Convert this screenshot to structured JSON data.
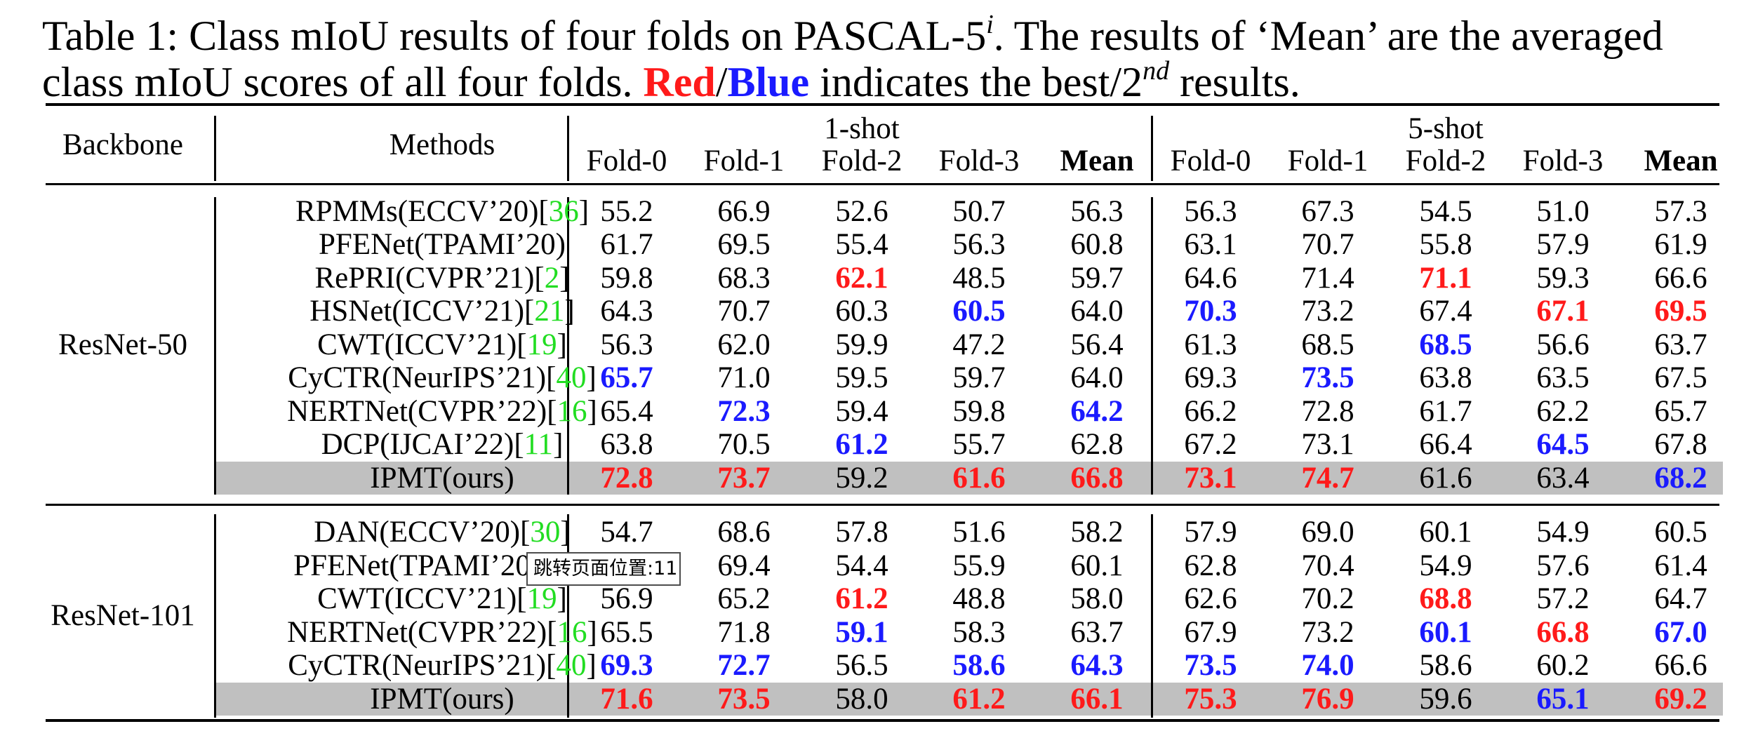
{
  "caption": {
    "line1_a": "Table 1: Class mIoU results of four folds on PASCAL-5",
    "line1_sup": "i",
    "line1_b": ". The results of ‘Mean’ are the averaged",
    "line2_a": "class mIoU scores of all four folds. ",
    "red_word": "Red",
    "slash": "/",
    "blue_word": "Blue",
    "line2_b": " indicates the best/2",
    "line2_sup": "nd",
    "line2_c": " results."
  },
  "header": {
    "backbone": "Backbone",
    "methods": "Methods",
    "shot1": "1-shot",
    "shot5": "5-shot",
    "cols": [
      "Fold-0",
      "Fold-1",
      "Fold-2",
      "Fold-3",
      "Mean",
      "Fold-0",
      "Fold-1",
      "Fold-2",
      "Fold-3",
      "Mean"
    ]
  },
  "groups": [
    {
      "backbone": "ResNet-50",
      "rows": [
        {
          "method": "RPMMs(ECCV’20)[",
          "cite": "36",
          "close": "]",
          "values": [
            "55.2",
            "66.9",
            "52.6",
            "50.7",
            "56.3",
            "56.3",
            "67.3",
            "54.5",
            "51.0",
            "57.3"
          ],
          "styles": [
            "",
            "",
            "",
            "",
            "",
            "",
            "",
            "",
            "",
            ""
          ]
        },
        {
          "method": "PFENet(TPAMI’20)",
          "cite": "",
          "close": "",
          "values": [
            "61.7",
            "69.5",
            "55.4",
            "56.3",
            "60.8",
            "63.1",
            "70.7",
            "55.8",
            "57.9",
            "61.9"
          ],
          "styles": [
            "",
            "",
            "",
            "",
            "",
            "",
            "",
            "",
            "",
            ""
          ]
        },
        {
          "method": "RePRI(CVPR’21)[",
          "cite": "2",
          "close": "]",
          "values": [
            "59.8",
            "68.3",
            "62.1",
            "48.5",
            "59.7",
            "64.6",
            "71.4",
            "71.1",
            "59.3",
            "66.6"
          ],
          "styles": [
            "",
            "",
            "red",
            "",
            "",
            "",
            "",
            "red",
            "",
            ""
          ]
        },
        {
          "method": "HSNet(ICCV’21)[",
          "cite": "21",
          "close": "]",
          "values": [
            "64.3",
            "70.7",
            "60.3",
            "60.5",
            "64.0",
            "70.3",
            "73.2",
            "67.4",
            "67.1",
            "69.5"
          ],
          "styles": [
            "",
            "",
            "",
            "blue",
            "",
            "blue",
            "",
            "",
            "red",
            "red"
          ]
        },
        {
          "method": "CWT(ICCV’21)[",
          "cite": "19",
          "close": "]",
          "values": [
            "56.3",
            "62.0",
            "59.9",
            "47.2",
            "56.4",
            "61.3",
            "68.5",
            "68.5",
            "56.6",
            "63.7"
          ],
          "styles": [
            "",
            "",
            "",
            "",
            "",
            "",
            "",
            "blue",
            "",
            ""
          ]
        },
        {
          "method": "CyCTR(NeurIPS’21)[",
          "cite": "40",
          "close": "]",
          "values": [
            "65.7",
            "71.0",
            "59.5",
            "59.7",
            "64.0",
            "69.3",
            "73.5",
            "63.8",
            "63.5",
            "67.5"
          ],
          "styles": [
            "blue",
            "",
            "",
            "",
            "",
            "",
            "blue",
            "",
            "",
            ""
          ]
        },
        {
          "method": "NERTNet(CVPR’22)[",
          "cite": "16",
          "close": "]",
          "values": [
            "65.4",
            "72.3",
            "59.4",
            "59.8",
            "64.2",
            "66.2",
            "72.8",
            "61.7",
            "62.2",
            "65.7"
          ],
          "styles": [
            "",
            "blue",
            "",
            "",
            "blue",
            "",
            "",
            "",
            "",
            ""
          ]
        },
        {
          "method": "DCP(IJCAI’22)[",
          "cite": "11",
          "close": "]",
          "values": [
            "63.8",
            "70.5",
            "61.2",
            "55.7",
            "62.8",
            "67.2",
            "73.1",
            "66.4",
            "64.5",
            "67.8"
          ],
          "styles": [
            "",
            "",
            "blue",
            "",
            "",
            "",
            "",
            "",
            "blue",
            ""
          ]
        },
        {
          "method": "IPMT(ours)",
          "cite": "",
          "close": "",
          "values": [
            "72.8",
            "73.7",
            "59.2",
            "61.6",
            "66.8",
            "73.1",
            "74.7",
            "61.6",
            "63.4",
            "68.2"
          ],
          "styles": [
            "red",
            "red",
            "",
            "red",
            "red",
            "red",
            "red",
            "",
            "",
            "blue"
          ]
        }
      ]
    },
    {
      "backbone": "ResNet-101",
      "rows": [
        {
          "method": "DAN(ECCV’20)[",
          "cite": "30",
          "close": "]",
          "values": [
            "54.7",
            "68.6",
            "57.8",
            "51.6",
            "58.2",
            "57.9",
            "69.0",
            "60.1",
            "54.9",
            "60.5"
          ],
          "styles": [
            "",
            "",
            "",
            "",
            "",
            "",
            "",
            "",
            "",
            ""
          ]
        },
        {
          "method": "PFENet(TPAMI’20)[",
          "cite": "28",
          "close": "]",
          "values": [
            "60.1",
            "69.4",
            "54.4",
            "55.9",
            "60.1",
            "62.8",
            "70.4",
            "54.9",
            "57.6",
            "61.4"
          ],
          "styles": [
            "",
            "",
            "",
            "",
            "",
            "",
            "",
            "",
            "",
            ""
          ]
        },
        {
          "method": "CWT(ICCV’21)[",
          "cite": "19",
          "close": "]",
          "values": [
            "56.9",
            "65.2",
            "61.2",
            "48.8",
            "58.0",
            "62.6",
            "70.2",
            "68.8",
            "57.2",
            "64.7"
          ],
          "styles": [
            "",
            "",
            "red",
            "",
            "",
            "",
            "",
            "red",
            "",
            ""
          ]
        },
        {
          "method": "NERTNet(CVPR’22)[",
          "cite": "16",
          "close": "]",
          "values": [
            "65.5",
            "71.8",
            "59.1",
            "58.3",
            "63.7",
            "67.9",
            "73.2",
            "60.1",
            "66.8",
            "67.0"
          ],
          "styles": [
            "",
            "",
            "blue",
            "",
            "",
            "",
            "",
            "blue",
            "red",
            "blue"
          ]
        },
        {
          "method": "CyCTR(NeurIPS’21)[",
          "cite": "40",
          "close": "]",
          "values": [
            "69.3",
            "72.7",
            "56.5",
            "58.6",
            "64.3",
            "73.5",
            "74.0",
            "58.6",
            "60.2",
            "66.6"
          ],
          "styles": [
            "blue",
            "blue",
            "",
            "blue",
            "blue",
            "blue",
            "blue",
            "",
            "",
            ""
          ]
        },
        {
          "method": "IPMT(ours)",
          "cite": "",
          "close": "",
          "values": [
            "71.6",
            "73.5",
            "58.0",
            "61.2",
            "66.1",
            "75.3",
            "76.9",
            "59.6",
            "65.1",
            "69.2"
          ],
          "styles": [
            "red",
            "red",
            "",
            "red",
            "red",
            "red",
            "red",
            "",
            "blue",
            "red"
          ]
        }
      ]
    }
  ],
  "tooltip": {
    "text": "跳转页面位置:11"
  }
}
